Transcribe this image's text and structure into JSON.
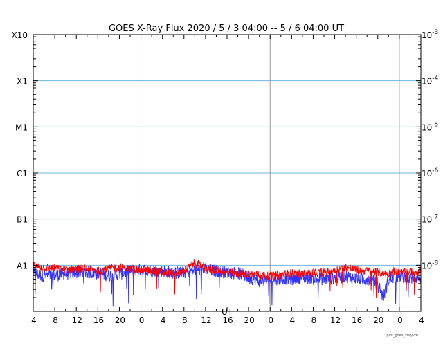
{
  "chart_data": {
    "type": "line",
    "title": "GOES X-Ray Flux   2020 /  5 /  3   04:00 --  5 /  6   04:00   UT",
    "xlabel": "UT",
    "x_tick_labels": [
      "4",
      "8",
      "12",
      "16",
      "20",
      "0",
      "4",
      "8",
      "12",
      "16",
      "20",
      "0",
      "4",
      "8",
      "12",
      "16",
      "20",
      "0",
      "4"
    ],
    "x_range_hours": [
      0,
      72
    ],
    "y_scale": "log",
    "ylim": [
      1e-09,
      0.001
    ],
    "y_left_labels": [
      {
        "label": "X10",
        "value": 0.001
      },
      {
        "label": "X1",
        "value": 0.0001
      },
      {
        "label": "M1",
        "value": 1e-05
      },
      {
        "label": "C1",
        "value": 1e-06
      },
      {
        "label": "B1",
        "value": 1e-07
      },
      {
        "label": "A1",
        "value": 1e-08
      }
    ],
    "y_right_labels": [
      {
        "base": "10",
        "exp": "-3",
        "value": 0.001
      },
      {
        "base": "10",
        "exp": "-4",
        "value": 0.0001
      },
      {
        "base": "10",
        "exp": "-5",
        "value": 1e-05
      },
      {
        "base": "10",
        "exp": "-6",
        "value": 1e-06
      },
      {
        "base": "10",
        "exp": "-7",
        "value": 1e-07
      },
      {
        "base": "10",
        "exp": "-8",
        "value": 1e-08
      }
    ],
    "grid_lines": [
      0.0001,
      1e-05,
      1e-06,
      1e-07,
      1e-08
    ],
    "day_boundaries_hours": [
      20,
      44,
      68
    ],
    "series": [
      {
        "color": "#ff0000",
        "x": [
          0,
          2,
          4,
          6,
          8,
          10,
          12,
          14,
          16,
          18,
          20,
          22,
          24,
          26,
          28,
          30,
          32,
          34,
          36,
          38,
          40,
          42,
          44,
          46,
          48,
          50,
          52,
          54,
          56,
          58,
          60,
          62,
          64,
          66,
          67,
          68,
          70,
          72
        ],
        "y": [
          9.5e-09,
          9e-09,
          8.5e-09,
          8e-09,
          8.5e-09,
          8.3e-09,
          7.5e-09,
          8.5e-09,
          9e-09,
          8.3e-09,
          7.8e-09,
          7.8e-09,
          7e-09,
          6.5e-09,
          7.5e-09,
          1.15e-08,
          8.5e-09,
          7.8e-09,
          7e-09,
          6.5e-09,
          6.5e-09,
          6.2e-09,
          5.8e-09,
          6.2e-09,
          6.8e-09,
          6.5e-09,
          6.8e-09,
          7e-09,
          8e-09,
          9e-09,
          8e-09,
          7.5e-09,
          7e-09,
          6.5e-09,
          7.5e-09,
          6.8e-09,
          7.2e-09,
          7.5e-09
        ]
      },
      {
        "color": "#3333ff",
        "x": [
          0,
          2,
          4,
          6,
          8,
          10,
          12,
          14,
          16,
          18,
          20,
          22,
          24,
          26,
          28,
          30,
          32,
          34,
          36,
          38,
          40,
          42,
          44,
          46,
          48,
          50,
          52,
          54,
          56,
          58,
          60,
          62,
          64,
          65,
          66,
          67,
          68,
          70,
          72
        ],
        "y": [
          6.5e-09,
          6e-09,
          6e-09,
          6.5e-09,
          7e-09,
          7e-09,
          6.8e-09,
          6e-09,
          6.5e-09,
          7.5e-09,
          8e-09,
          7.8e-09,
          7.5e-09,
          6.8e-09,
          7e-09,
          7.8e-09,
          8e-09,
          7.5e-09,
          7e-09,
          6.8e-09,
          5.5e-09,
          4.5e-09,
          4.8e-09,
          5.2e-09,
          5e-09,
          5.5e-09,
          5.2e-09,
          5e-09,
          5.3e-09,
          5.8e-09,
          5.2e-09,
          5e-09,
          4.2e-09,
          2e-09,
          4.8e-09,
          5.5e-09,
          5.8e-09,
          5.2e-09,
          5.5e-09
        ]
      }
    ]
  },
  "footer_note": "plot_goes_xray2m"
}
